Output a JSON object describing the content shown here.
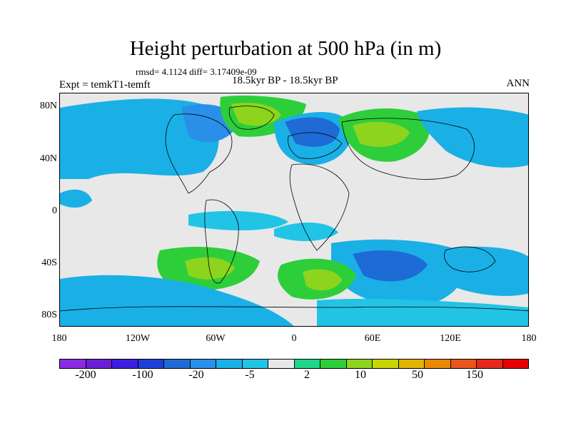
{
  "title": "Height perturbation at 500 hPa (in m)",
  "stats": "rmsd= 4.1124 diff= 3.17409e-09",
  "expt": "Expt = temkT1-temft",
  "period": "18.5kyr BP - 18.5kyr BP",
  "season": "ANN",
  "lat_labels": [
    "80N",
    "40N",
    "0",
    "40S",
    "80S"
  ],
  "lon_labels": [
    "180",
    "120W",
    "60W",
    "0",
    "60E",
    "120E",
    "180"
  ],
  "colorbar": {
    "colors": [
      "#8a2be2",
      "#6a1fd6",
      "#3c1ee0",
      "#1e3fd8",
      "#1f6bd6",
      "#2a8fe8",
      "#1ab0e6",
      "#22c4e6",
      "#e8e8e8",
      "#1ed68a",
      "#2ece3a",
      "#8cd41e",
      "#c8d600",
      "#e0b400",
      "#e88a00",
      "#e8561a",
      "#e8281a",
      "#e80000"
    ],
    "labels": [
      "-200",
      "-100",
      "-20",
      "-5",
      "2",
      "10",
      "50",
      "150"
    ]
  },
  "map": {
    "background": "#e8e8e8",
    "coastline_color": "#000000"
  }
}
